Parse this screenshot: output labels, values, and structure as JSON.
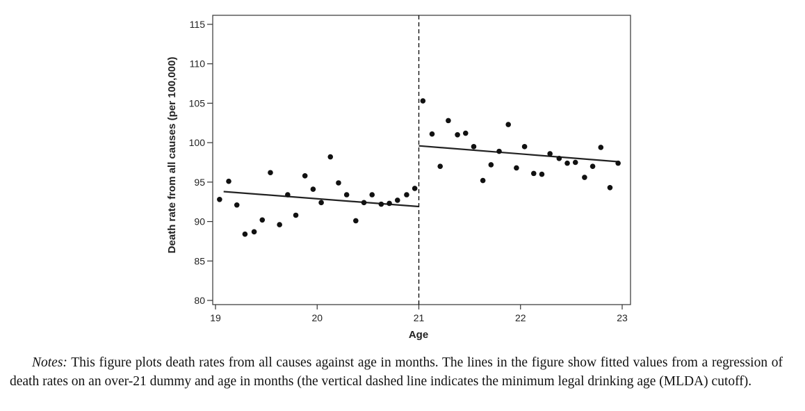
{
  "chart_data": {
    "type": "scatter",
    "xlabel": "Age",
    "ylabel": "Death rate from all causes (per 100,000)",
    "xlim": [
      19,
      23
    ],
    "ylim": [
      80,
      115
    ],
    "xticks": [
      19,
      20,
      21,
      22,
      23
    ],
    "yticks": [
      80,
      85,
      90,
      95,
      100,
      105,
      110,
      115
    ],
    "cutoff_x": 21,
    "grid": false,
    "legend": "none",
    "series": [
      {
        "points": [
          [
            19.04,
            92.8
          ],
          [
            19.13,
            95.1
          ],
          [
            19.21,
            92.1
          ],
          [
            19.29,
            88.4
          ],
          [
            19.38,
            88.7
          ],
          [
            19.46,
            90.2
          ],
          [
            19.54,
            96.2
          ],
          [
            19.63,
            89.6
          ],
          [
            19.71,
            93.4
          ],
          [
            19.79,
            90.8
          ],
          [
            19.88,
            95.8
          ],
          [
            19.96,
            94.1
          ],
          [
            20.04,
            92.4
          ],
          [
            20.13,
            98.2
          ],
          [
            20.21,
            94.9
          ],
          [
            20.29,
            93.4
          ],
          [
            20.38,
            90.1
          ],
          [
            20.46,
            92.4
          ],
          [
            20.54,
            93.4
          ],
          [
            20.63,
            92.2
          ],
          [
            20.71,
            92.3
          ],
          [
            20.79,
            92.7
          ],
          [
            20.88,
            93.4
          ],
          [
            20.96,
            94.2
          ],
          [
            21.04,
            105.3
          ],
          [
            21.13,
            101.1
          ],
          [
            21.21,
            97.0
          ],
          [
            21.29,
            102.8
          ],
          [
            21.38,
            101.0
          ],
          [
            21.46,
            101.2
          ],
          [
            21.54,
            99.5
          ],
          [
            21.63,
            95.2
          ],
          [
            21.71,
            97.2
          ],
          [
            21.79,
            98.9
          ],
          [
            21.88,
            102.3
          ],
          [
            21.96,
            96.8
          ],
          [
            22.04,
            99.5
          ],
          [
            22.13,
            96.1
          ],
          [
            22.21,
            96.0
          ],
          [
            22.29,
            98.6
          ],
          [
            22.38,
            98.0
          ],
          [
            22.46,
            97.4
          ],
          [
            22.54,
            97.5
          ],
          [
            22.63,
            95.6
          ],
          [
            22.71,
            97.0
          ],
          [
            22.79,
            99.4
          ],
          [
            22.88,
            94.3
          ],
          [
            22.96,
            97.4
          ]
        ]
      }
    ],
    "fitted_lines": [
      {
        "x": [
          19.08,
          21.0
        ],
        "y": [
          93.8,
          91.9
        ]
      },
      {
        "x": [
          21.0,
          22.95
        ],
        "y": [
          99.6,
          97.6
        ]
      }
    ]
  },
  "notes": {
    "label": "Notes:",
    "text": " This figure plots death rates from all causes against age in months. The lines in the figure show fitted values from a regression of death rates on an over-21 dummy and age in months (the vertical dashed line indicates the minimum legal drinking age (MLDA) cutoff)."
  }
}
